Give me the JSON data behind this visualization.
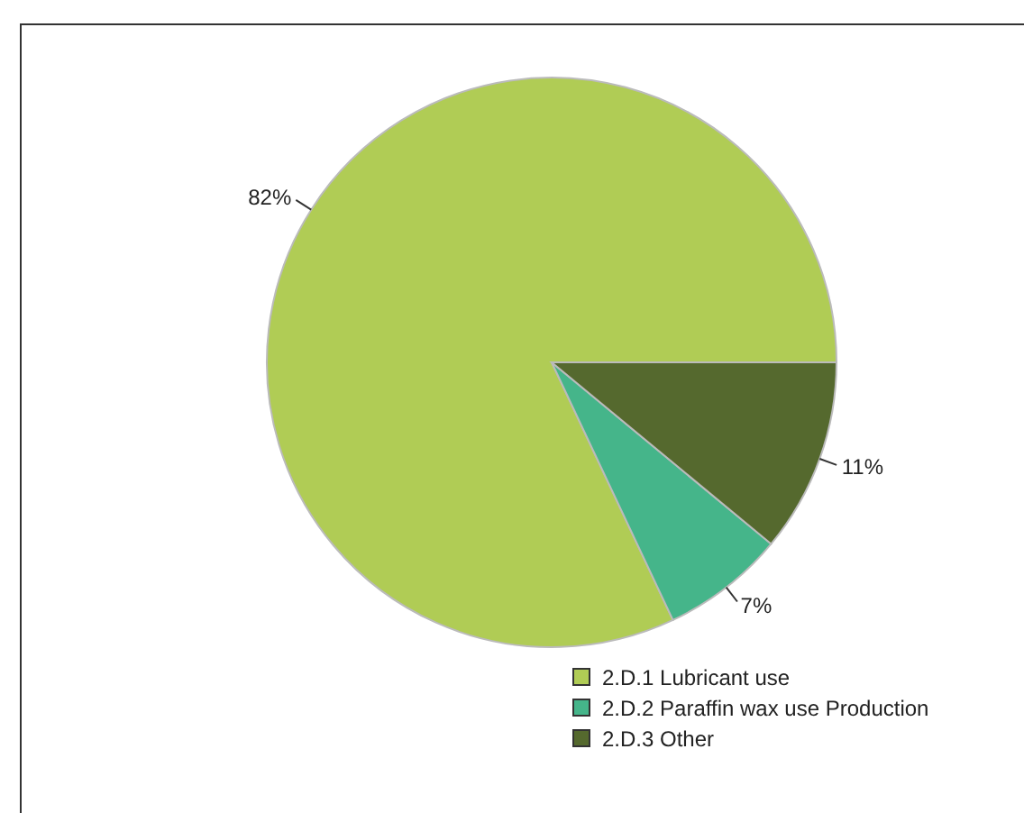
{
  "chart_data": {
    "type": "pie",
    "categories": [
      "2.D.1 Lubricant use",
      "2.D.2 Paraffin wax use Production",
      "2.D.3 Other"
    ],
    "values": [
      82,
      7,
      11
    ],
    "colors": [
      "#b0cc55",
      "#45b58a",
      "#55692e"
    ],
    "value_labels": [
      "82%",
      "7%",
      "11%"
    ],
    "legend": "bottom right"
  }
}
